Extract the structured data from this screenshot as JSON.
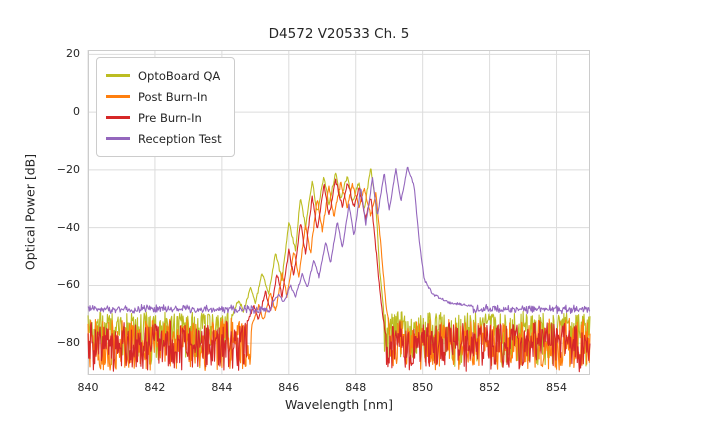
{
  "chart_data": {
    "type": "line",
    "title": "D4572 V20533 Ch. 5",
    "xlabel": "Wavelength [nm]",
    "ylabel": "Optical Power [dB]",
    "xlim": [
      840,
      855
    ],
    "ylim": [
      -91,
      21.5
    ],
    "xticks": [
      840,
      842,
      844,
      846,
      848,
      850,
      852,
      854
    ],
    "yticks": [
      20,
      0,
      -20,
      -40,
      -60,
      -80
    ],
    "grid": true,
    "legend": {
      "position": "upper-left"
    },
    "series": [
      {
        "name": "OptoBoard QA",
        "color": "#bcbd22",
        "floor": {
          "level": -70,
          "depth": 18,
          "bias": 1.8,
          "jitter": 2
        },
        "texture": 1.4,
        "envelope": [
          [
            844.3,
            -71
          ],
          [
            844.5,
            -65
          ],
          [
            844.65,
            -69
          ],
          [
            844.85,
            -61
          ],
          [
            845.0,
            -66
          ],
          [
            845.2,
            -56
          ],
          [
            845.4,
            -63
          ],
          [
            845.6,
            -49
          ],
          [
            845.8,
            -58
          ],
          [
            846.0,
            -38
          ],
          [
            846.2,
            -48
          ],
          [
            846.35,
            -29
          ],
          [
            846.5,
            -40
          ],
          [
            846.7,
            -24
          ],
          [
            846.85,
            -35
          ],
          [
            847.05,
            -22
          ],
          [
            847.2,
            -32
          ],
          [
            847.4,
            -21
          ],
          [
            847.55,
            -30
          ],
          [
            847.75,
            -22
          ],
          [
            847.9,
            -31
          ],
          [
            848.1,
            -24
          ],
          [
            848.25,
            -34
          ],
          [
            848.45,
            -19
          ],
          [
            848.6,
            -32
          ],
          [
            848.72,
            -55
          ],
          [
            848.85,
            -71
          ]
        ]
      },
      {
        "name": "Post Burn-In",
        "color": "#ff7f0e",
        "floor": {
          "level": -72,
          "depth": 17,
          "bias": 1.1,
          "jitter": 2
        },
        "texture": 1.4,
        "envelope": [
          [
            844.9,
            -73
          ],
          [
            845.1,
            -67
          ],
          [
            845.25,
            -72
          ],
          [
            845.45,
            -62
          ],
          [
            845.6,
            -69
          ],
          [
            845.8,
            -56
          ],
          [
            845.95,
            -64
          ],
          [
            846.15,
            -48
          ],
          [
            846.3,
            -57
          ],
          [
            846.5,
            -39
          ],
          [
            846.65,
            -49
          ],
          [
            846.85,
            -30
          ],
          [
            847.0,
            -41
          ],
          [
            847.2,
            -26
          ],
          [
            847.35,
            -36
          ],
          [
            847.55,
            -24.5
          ],
          [
            847.75,
            -33
          ],
          [
            847.9,
            -25
          ],
          [
            848.1,
            -33
          ],
          [
            848.25,
            -26
          ],
          [
            848.45,
            -36
          ],
          [
            848.6,
            -28
          ],
          [
            848.75,
            -46
          ],
          [
            848.9,
            -66
          ],
          [
            849.0,
            -74
          ]
        ]
      },
      {
        "name": "Pre Burn-In",
        "color": "#d62728",
        "floor": {
          "level": -73,
          "depth": 16,
          "bias": 1.1,
          "jitter": 2
        },
        "texture": 1.4,
        "envelope": [
          [
            844.75,
            -73
          ],
          [
            844.95,
            -67
          ],
          [
            845.1,
            -72
          ],
          [
            845.3,
            -62
          ],
          [
            845.45,
            -69
          ],
          [
            845.65,
            -56
          ],
          [
            845.8,
            -64
          ],
          [
            846.0,
            -48
          ],
          [
            846.15,
            -57
          ],
          [
            846.35,
            -38
          ],
          [
            846.5,
            -49
          ],
          [
            846.7,
            -29
          ],
          [
            846.85,
            -41
          ],
          [
            847.05,
            -25
          ],
          [
            847.2,
            -36
          ],
          [
            847.4,
            -23.5
          ],
          [
            847.6,
            -33
          ],
          [
            847.75,
            -24
          ],
          [
            847.95,
            -33
          ],
          [
            848.1,
            -26
          ],
          [
            848.3,
            -37
          ],
          [
            848.45,
            -29
          ],
          [
            848.6,
            -47
          ],
          [
            848.75,
            -65
          ],
          [
            848.85,
            -74
          ]
        ]
      },
      {
        "name": "Reception Test",
        "color": "#9467bd",
        "floor": {
          "level": -67.3,
          "depth": 1.8,
          "bias": 1,
          "jitter": 1.6
        },
        "texture": 0.8,
        "envelope": [
          [
            845.5,
            -66
          ],
          [
            845.7,
            -63
          ],
          [
            845.85,
            -66
          ],
          [
            846.05,
            -60
          ],
          [
            846.2,
            -64
          ],
          [
            846.4,
            -56
          ],
          [
            846.55,
            -61
          ],
          [
            846.75,
            -51
          ],
          [
            846.9,
            -57
          ],
          [
            847.1,
            -45
          ],
          [
            847.25,
            -52
          ],
          [
            847.45,
            -38
          ],
          [
            847.6,
            -47
          ],
          [
            847.8,
            -32
          ],
          [
            847.95,
            -43
          ],
          [
            848.15,
            -26
          ],
          [
            848.3,
            -39
          ],
          [
            848.5,
            -23
          ],
          [
            848.65,
            -36
          ],
          [
            848.85,
            -21
          ],
          [
            849.0,
            -34
          ],
          [
            849.2,
            -19.5
          ],
          [
            849.35,
            -31
          ],
          [
            849.55,
            -19
          ],
          [
            849.75,
            -26
          ],
          [
            849.9,
            -45
          ],
          [
            850.05,
            -58
          ],
          [
            850.3,
            -63
          ],
          [
            850.8,
            -66
          ],
          [
            851.5,
            -67
          ]
        ]
      }
    ]
  }
}
